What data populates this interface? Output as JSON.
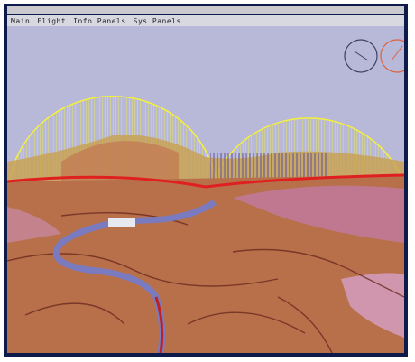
{
  "menu": {
    "items": [
      "Main",
      "Flight",
      "Info Panels",
      "Sys Panels"
    ]
  }
}
